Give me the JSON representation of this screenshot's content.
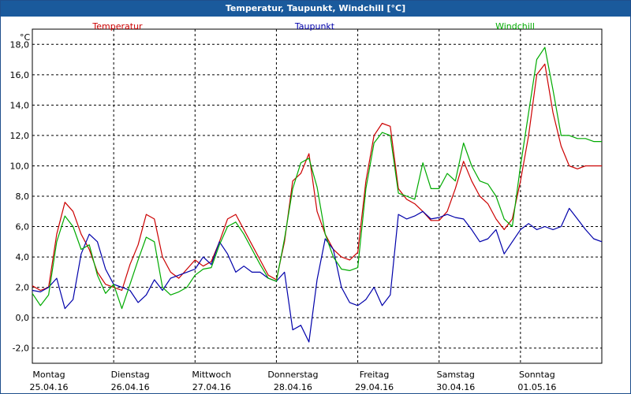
{
  "chart_data": {
    "type": "line",
    "title": "Temperatur, Taupunkt, Windchill [°C]",
    "ylabel": "°C",
    "ylim": [
      -3,
      19
    ],
    "yticks": [
      "18,0",
      "16,0",
      "14,0",
      "12,0",
      "10,0",
      "8,0",
      "6,0",
      "4,0",
      "2,0",
      "0,0",
      "-2,0"
    ],
    "ytick_values": [
      18,
      16,
      14,
      12,
      10,
      8,
      6,
      4,
      2,
      0,
      -2
    ],
    "x_days": [
      {
        "weekday": "Montag",
        "date": "25.04.16"
      },
      {
        "weekday": "Dienstag",
        "date": "26.04.16"
      },
      {
        "weekday": "Mittwoch",
        "date": "27.04.16"
      },
      {
        "weekday": "Donnerstag",
        "date": "28.04.16"
      },
      {
        "weekday": "Freitag",
        "date": "29.04.16"
      },
      {
        "weekday": "Samstag",
        "date": "30.04.16"
      },
      {
        "weekday": "Sonntag",
        "date": "01.05.16"
      }
    ],
    "xlim": [
      0,
      7
    ],
    "legend": [
      {
        "name": "Temperatur",
        "color": "#cc0000"
      },
      {
        "name": "Taupunkt",
        "color": "#0000aa"
      },
      {
        "name": "Windchill",
        "color": "#00aa00"
      }
    ],
    "series": [
      {
        "name": "Temperatur",
        "color": "#cc0000",
        "x": [
          0,
          0.1,
          0.2,
          0.3,
          0.4,
          0.5,
          0.6,
          0.7,
          0.8,
          0.9,
          1.0,
          1.1,
          1.2,
          1.3,
          1.4,
          1.5,
          1.6,
          1.7,
          1.8,
          1.9,
          2.0,
          2.1,
          2.2,
          2.3,
          2.4,
          2.5,
          2.6,
          2.7,
          2.8,
          2.9,
          3.0,
          3.1,
          3.2,
          3.3,
          3.4,
          3.5,
          3.6,
          3.7,
          3.8,
          3.9,
          4.0,
          4.1,
          4.2,
          4.3,
          4.4,
          4.5,
          4.6,
          4.7,
          4.8,
          4.9,
          5.0,
          5.1,
          5.2,
          5.3,
          5.4,
          5.5,
          5.6,
          5.7,
          5.8,
          5.9,
          6.0,
          6.1,
          6.2,
          6.3,
          6.4,
          6.5,
          6.6,
          6.7,
          6.8,
          6.9,
          7.0
        ],
        "y": [
          2.1,
          1.8,
          2.0,
          5.5,
          7.6,
          7.0,
          5.5,
          4.5,
          3.0,
          2.2,
          2.0,
          1.8,
          3.5,
          4.8,
          6.8,
          6.5,
          4.0,
          3.0,
          2.6,
          3.2,
          3.8,
          3.4,
          3.7,
          5.0,
          6.5,
          6.8,
          5.8,
          4.8,
          3.8,
          2.8,
          2.5,
          5.0,
          9.0,
          9.5,
          10.8,
          7.0,
          5.5,
          4.5,
          4.0,
          3.8,
          4.3,
          9.0,
          12.0,
          12.8,
          12.6,
          8.5,
          7.8,
          7.5,
          7.0,
          6.4,
          6.4,
          7.0,
          8.5,
          10.3,
          9.0,
          8.0,
          7.5,
          6.5,
          5.8,
          6.5,
          9.0,
          12.0,
          16.0,
          16.7,
          13.5,
          11.3,
          10.0,
          9.8,
          10.0,
          10.0,
          10.0
        ]
      },
      {
        "name": "Taupunkt",
        "color": "#0000aa",
        "x": [
          0,
          0.1,
          0.2,
          0.3,
          0.4,
          0.5,
          0.6,
          0.7,
          0.8,
          0.9,
          1.0,
          1.1,
          1.2,
          1.3,
          1.4,
          1.5,
          1.6,
          1.7,
          1.8,
          1.9,
          2.0,
          2.1,
          2.2,
          2.3,
          2.4,
          2.5,
          2.6,
          2.7,
          2.8,
          2.9,
          3.0,
          3.1,
          3.2,
          3.3,
          3.4,
          3.5,
          3.6,
          3.7,
          3.8,
          3.9,
          4.0,
          4.1,
          4.2,
          4.3,
          4.4,
          4.5,
          4.6,
          4.7,
          4.8,
          4.9,
          5.0,
          5.1,
          5.2,
          5.3,
          5.4,
          5.5,
          5.6,
          5.7,
          5.8,
          5.9,
          6.0,
          6.1,
          6.2,
          6.3,
          6.4,
          6.5,
          6.6,
          6.7,
          6.8,
          6.9,
          7.0
        ],
        "y": [
          1.8,
          1.7,
          2.0,
          2.6,
          0.6,
          1.2,
          4.2,
          5.5,
          5.0,
          3.2,
          2.2,
          2.0,
          1.8,
          1.0,
          1.5,
          2.5,
          1.8,
          2.6,
          2.8,
          3.0,
          3.2,
          4.0,
          3.5,
          5.0,
          4.2,
          3.0,
          3.4,
          3.0,
          3.0,
          2.6,
          2.4,
          3.0,
          -0.8,
          -0.5,
          -1.6,
          2.5,
          5.2,
          4.5,
          2.0,
          1.0,
          0.8,
          1.2,
          2.0,
          0.8,
          1.5,
          6.8,
          6.5,
          6.7,
          7.0,
          6.5,
          6.6,
          6.8,
          6.6,
          6.5,
          5.8,
          5.0,
          5.2,
          5.8,
          4.2,
          5.0,
          5.8,
          6.2,
          5.8,
          6.0,
          5.8,
          6.0,
          7.2,
          6.5,
          5.8,
          5.2,
          5.0
        ]
      },
      {
        "name": "Windchill",
        "color": "#00aa00",
        "x": [
          0,
          0.1,
          0.2,
          0.3,
          0.4,
          0.5,
          0.6,
          0.7,
          0.8,
          0.9,
          1.0,
          1.1,
          1.2,
          1.3,
          1.4,
          1.5,
          1.6,
          1.7,
          1.8,
          1.9,
          2.0,
          2.1,
          2.2,
          2.3,
          2.4,
          2.5,
          2.6,
          2.7,
          2.8,
          2.9,
          3.0,
          3.1,
          3.2,
          3.3,
          3.4,
          3.5,
          3.6,
          3.7,
          3.8,
          3.9,
          4.0,
          4.1,
          4.2,
          4.3,
          4.4,
          4.5,
          4.6,
          4.7,
          4.8,
          4.9,
          5.0,
          5.1,
          5.2,
          5.3,
          5.4,
          5.5,
          5.6,
          5.7,
          5.8,
          5.9,
          6.0,
          6.1,
          6.2,
          6.3,
          6.4,
          6.5,
          6.6,
          6.7,
          6.8,
          6.9,
          7.0
        ],
        "y": [
          1.6,
          0.8,
          1.5,
          5.0,
          6.7,
          6.0,
          4.5,
          4.8,
          2.8,
          1.6,
          2.2,
          0.6,
          2.2,
          3.8,
          5.3,
          5.0,
          2.0,
          1.5,
          1.7,
          2.0,
          2.8,
          3.2,
          3.3,
          4.8,
          6.0,
          6.3,
          5.5,
          4.5,
          3.5,
          2.6,
          2.4,
          5.2,
          8.5,
          10.2,
          10.5,
          8.6,
          5.5,
          4.0,
          3.2,
          3.1,
          3.3,
          8.5,
          11.5,
          12.2,
          12.0,
          8.2,
          8.0,
          7.8,
          10.2,
          8.5,
          8.5,
          9.5,
          9.0,
          11.5,
          10.0,
          9.0,
          8.8,
          8.0,
          6.5,
          6.0,
          10.0,
          13.5,
          17.0,
          17.8,
          15.0,
          12.0,
          12.0,
          11.8,
          11.8,
          11.6,
          11.6
        ]
      }
    ]
  }
}
